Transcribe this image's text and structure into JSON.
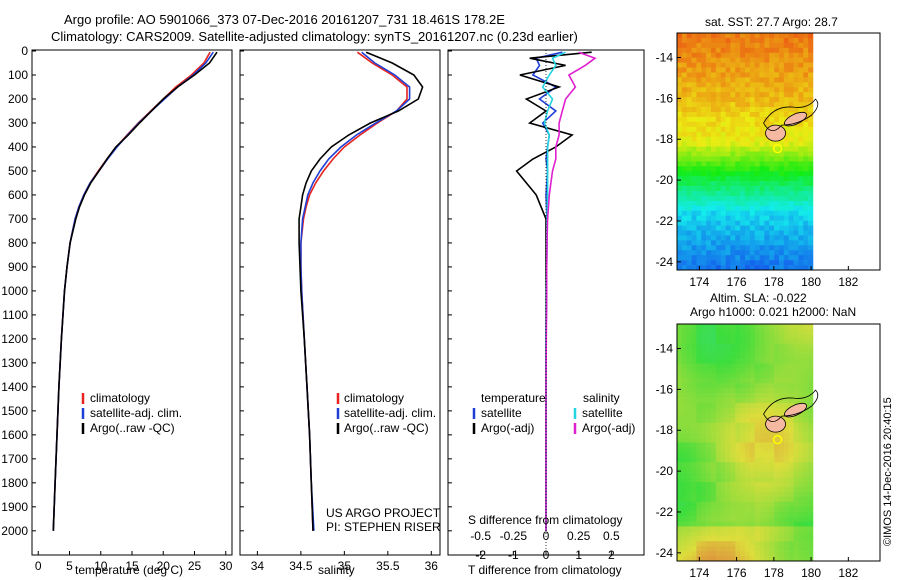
{
  "header": {
    "line1": "Argo profile: AO 5901066_373 07-Dec-2016 20161207_731 18.461S 178.2E",
    "line2": "Climatology: CARS2009. Satellite-adjusted climatology: synTS_20161207.nc (0.23d earlier)"
  },
  "colors": {
    "climatology": "#e8231e",
    "satellite": "#1f3fd6",
    "argo": "#000000",
    "sat_salinity": "#22d3e0",
    "argo_adj_salinity": "#e020d0"
  },
  "chart_data": [
    {
      "type": "line",
      "id": "temperature",
      "xlabel": "temperature (deg C)",
      "ylabel": "",
      "xlim": [
        -1,
        31
      ],
      "ylim": [
        2080,
        0
      ],
      "xticks": [
        0,
        5,
        10,
        15,
        20,
        25,
        30
      ],
      "yticks": [
        0,
        100,
        200,
        300,
        400,
        500,
        600,
        700,
        800,
        900,
        1000,
        1100,
        1200,
        1300,
        1400,
        1500,
        1600,
        1700,
        1800,
        1900,
        2000
      ],
      "depth": [
        5,
        50,
        100,
        150,
        200,
        250,
        300,
        350,
        400,
        450,
        500,
        550,
        600,
        650,
        700,
        800,
        900,
        1000,
        1200,
        1400,
        1600,
        1800,
        2000
      ],
      "series": [
        {
          "name": "climatology",
          "color": "#e8231e",
          "values": [
            27.5,
            26.5,
            24.5,
            22.0,
            20.0,
            18.0,
            16.0,
            14.2,
            12.5,
            11.0,
            9.6,
            8.3,
            7.3,
            6.5,
            5.9,
            5.1,
            4.6,
            4.2,
            3.7,
            3.3,
            3.0,
            2.7,
            2.4
          ]
        },
        {
          "name": "satellite-adj. clim.",
          "color": "#1f3fd6",
          "values": [
            28.0,
            26.8,
            24.8,
            22.3,
            20.2,
            18.1,
            16.1,
            14.3,
            12.6,
            11.1,
            9.7,
            8.3,
            7.3,
            6.5,
            5.9,
            5.1,
            4.6,
            4.2,
            3.7,
            3.3,
            3.0,
            2.7,
            2.4
          ]
        },
        {
          "name": "Argo(..raw -QC)",
          "color": "#000000",
          "values": [
            28.6,
            27.4,
            25.0,
            22.3,
            20.0,
            18.1,
            16.2,
            14.4,
            12.4,
            11.0,
            9.7,
            8.4,
            7.4,
            6.6,
            6.0,
            5.1,
            4.6,
            4.2,
            3.7,
            3.3,
            3.0,
            2.7,
            2.4
          ]
        }
      ],
      "legend": [
        "climatology",
        "satellite-adj. clim.",
        "Argo(..raw -QC)"
      ]
    },
    {
      "type": "line",
      "id": "salinity",
      "xlabel": "salinity",
      "xlim": [
        33.8,
        36.1
      ],
      "ylim": [
        2080,
        0
      ],
      "xticks": [
        34,
        34.5,
        35,
        35.5,
        36
      ],
      "depth": [
        5,
        50,
        100,
        150,
        200,
        250,
        300,
        350,
        400,
        450,
        500,
        550,
        600,
        650,
        700,
        800,
        900,
        1000,
        1200,
        1400,
        1600,
        1800,
        2000
      ],
      "series": [
        {
          "name": "climatology",
          "color": "#e8231e",
          "values": [
            35.15,
            35.32,
            35.55,
            35.72,
            35.72,
            35.6,
            35.38,
            35.18,
            35.0,
            34.87,
            34.76,
            34.67,
            34.6,
            34.56,
            34.53,
            34.5,
            34.5,
            34.51,
            34.54,
            34.57,
            34.6,
            34.62,
            34.64
          ]
        },
        {
          "name": "satellite-adj. clim.",
          "color": "#1f3fd6",
          "values": [
            35.2,
            35.35,
            35.58,
            35.75,
            35.75,
            35.6,
            35.36,
            35.14,
            34.96,
            34.82,
            34.72,
            34.64,
            34.58,
            34.55,
            34.52,
            34.5,
            34.5,
            34.51,
            34.54,
            34.57,
            34.6,
            34.62,
            34.65
          ]
        },
        {
          "name": "Argo(..raw -QC)",
          "color": "#000000",
          "values": [
            35.25,
            35.55,
            35.8,
            35.9,
            35.85,
            35.62,
            35.3,
            35.05,
            34.85,
            34.72,
            34.62,
            34.56,
            34.52,
            34.5,
            34.48,
            34.48,
            34.49,
            34.5,
            34.54,
            34.57,
            34.6,
            34.62,
            34.64
          ]
        }
      ],
      "legend": [
        "climatology",
        "satellite-adj. clim.",
        "Argo(..raw -QC)"
      ],
      "annotations": [
        "US ARGO PROJECT",
        "PI: STEPHEN RISER"
      ]
    },
    {
      "type": "line",
      "id": "differences",
      "xlabel_bottom": "T difference from climatology",
      "xlabel_top": "S difference from climatology",
      "xlim_T": [
        -3,
        3
      ],
      "xticks_T": [
        -2,
        -1,
        0,
        1,
        2
      ],
      "xticks_S": [
        -0.5,
        -0.25,
        0,
        0.25,
        0.5
      ],
      "depth": [
        5,
        30,
        60,
        100,
        150,
        200,
        250,
        300,
        350,
        400,
        450,
        500,
        600,
        700,
        800,
        900,
        1000,
        1200,
        1400,
        1600,
        1800,
        2000
      ],
      "series": [
        {
          "name": "temperature satellite",
          "color": "#1f3fd6",
          "values": [
            0.5,
            -0.3,
            -0.2,
            -0.4,
            0.3,
            -0.2,
            0.3,
            -0.1,
            0.1,
            0.05,
            0.0,
            0.05,
            0.0,
            0.03,
            0.03,
            0.02,
            0.02,
            0.0,
            0.0,
            0.0,
            0.0,
            0.0
          ]
        },
        {
          "name": "temperature Argo(-adj)",
          "color": "#000000",
          "values": [
            1.4,
            -0.5,
            0.6,
            -0.8,
            0.4,
            -0.6,
            0.0,
            -0.5,
            0.8,
            0.3,
            -0.4,
            -0.9,
            -0.3,
            0.0,
            0.0,
            0.0,
            0.0,
            0.0,
            0.0,
            0.0,
            0.0,
            0.0
          ]
        },
        {
          "name": "salinity satellite",
          "color": "#22d3e0",
          "values": [
            0.6,
            0.2,
            0.3,
            0.1,
            -0.1,
            0.2,
            0.05,
            -0.05,
            0.1,
            0.05,
            0.05,
            0.05,
            0.05,
            0.03,
            0.02,
            0.02,
            0.01,
            0.0,
            0.0,
            0.0,
            0.0,
            0.0
          ]
        },
        {
          "name": "salinity Argo(-adj)",
          "color": "#e020d0",
          "values": [
            1.0,
            1.5,
            1.2,
            0.7,
            0.9,
            0.6,
            0.5,
            0.4,
            0.4,
            0.3,
            0.3,
            0.2,
            0.1,
            0.05,
            0.03,
            0.02,
            0.02,
            0.01,
            0.0,
            0.0,
            0.0,
            0.0
          ]
        }
      ],
      "legend_temperature_title": "temperature",
      "legend_salinity_title": "salinity",
      "legend_labels": [
        "satellite",
        "Argo(-adj)"
      ]
    },
    {
      "type": "heatmap",
      "id": "sst_map",
      "title": "sat. SST: 27.7  Argo: 28.7",
      "xticks": [
        174,
        176,
        178,
        180,
        182
      ],
      "yticks": [
        -14,
        -16,
        -18,
        -20,
        -22,
        -24
      ],
      "xlim": [
        172.8,
        183.7
      ],
      "ylim": [
        -24.4,
        -12.8
      ]
    },
    {
      "type": "heatmap",
      "id": "sla_map",
      "title_line1": "Altim. SLA: -0.022",
      "title_line2": "Argo h1000: 0.021  h2000: NaN",
      "xticks": [
        174,
        176,
        178,
        180,
        182
      ],
      "yticks": [
        -14,
        -16,
        -18,
        -20,
        -22,
        -24
      ],
      "xlim": [
        172.8,
        183.7
      ],
      "ylim": [
        -24.4,
        -12.8
      ]
    }
  ],
  "footer": {
    "stamp": "©IMOS 14-Dec-2016 20:40:15"
  }
}
